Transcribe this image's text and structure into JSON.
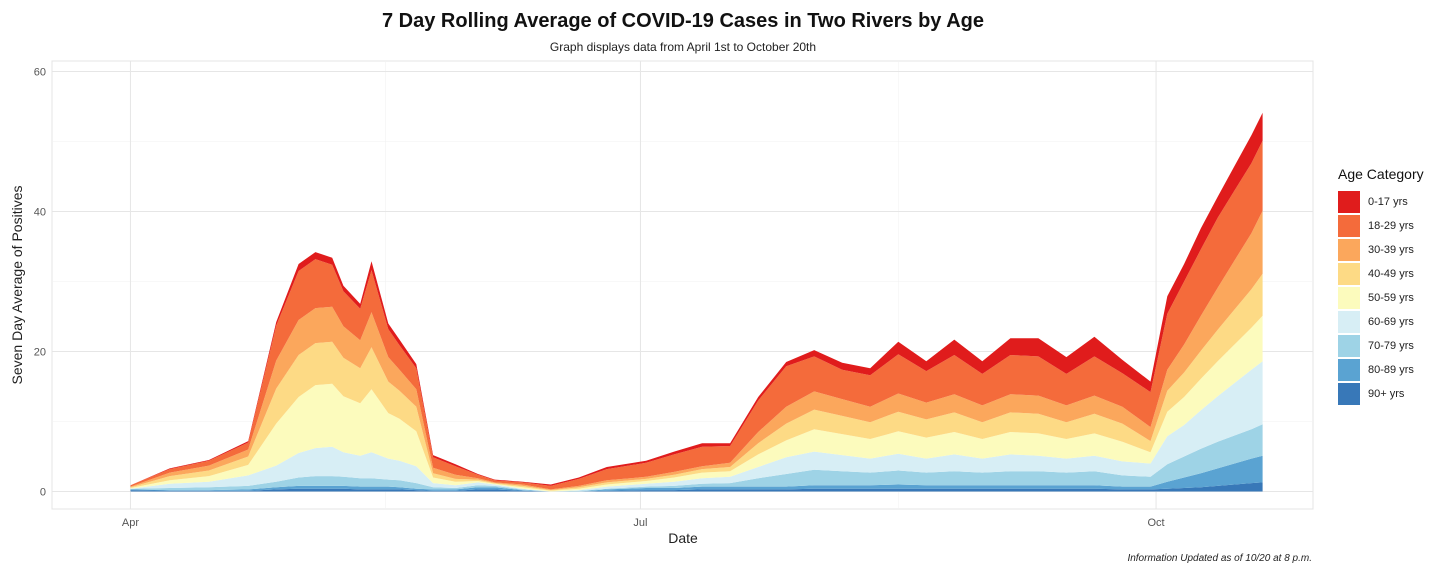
{
  "chart_data": {
    "type": "area",
    "stacked": true,
    "title": "7 Day Rolling Average of COVID-19 Cases in Two Rivers by Age",
    "subtitle": "Graph displays data from April 1st to October 20th",
    "xlabel": "Date",
    "ylabel": "Seven Day Average of Positives",
    "x_tick_labels": [
      "Apr",
      "Jul",
      "Oct"
    ],
    "x_tick_dates": [
      "04-01",
      "07-01",
      "10-01"
    ],
    "y_ticks": [
      0,
      20,
      40,
      60
    ],
    "ylim": [
      -2.5,
      61.5
    ],
    "xlim": [
      "03-18",
      "10-29"
    ],
    "grid": true,
    "legend_title": "Age Category",
    "legend_position": "right",
    "x_dates": [
      "04-01",
      "04-08",
      "04-15",
      "04-22",
      "04-27",
      "05-01",
      "05-04",
      "05-07",
      "05-09",
      "05-12",
      "05-14",
      "05-17",
      "05-19",
      "05-22",
      "05-25",
      "05-29",
      "06-02",
      "06-05",
      "06-10",
      "06-15",
      "06-20",
      "06-25",
      "07-02",
      "07-07",
      "07-12",
      "07-17",
      "07-22",
      "07-27",
      "08-01",
      "08-06",
      "08-11",
      "08-16",
      "08-21",
      "08-26",
      "08-31",
      "09-05",
      "09-10",
      "09-15",
      "09-20",
      "09-25",
      "09-30",
      "10-03",
      "10-06",
      "10-09",
      "10-12",
      "10-15",
      "10-18",
      "10-20"
    ],
    "series": [
      {
        "name": "90+ yrs",
        "color": "#3878b8",
        "values": [
          0.2,
          0.1,
          0.1,
          0.1,
          0.3,
          0.4,
          0.4,
          0.4,
          0.4,
          0.3,
          0.3,
          0.3,
          0.3,
          0.2,
          0.1,
          0.1,
          0.3,
          0.3,
          0.1,
          0,
          0,
          0.1,
          0.2,
          0.2,
          0.3,
          0.3,
          0.3,
          0.3,
          0.4,
          0.4,
          0.4,
          0.4,
          0.4,
          0.4,
          0.4,
          0.4,
          0.4,
          0.4,
          0.4,
          0.3,
          0.3,
          0.4,
          0.5,
          0.6,
          0.8,
          1,
          1.2,
          1.3
        ]
      },
      {
        "name": "80-89 yrs",
        "color": "#5aa3d2",
        "values": [
          0.1,
          0.1,
          0.1,
          0.2,
          0.3,
          0.4,
          0.4,
          0.4,
          0.4,
          0.4,
          0.4,
          0.4,
          0.3,
          0.2,
          0.2,
          0.2,
          0.3,
          0.3,
          0.1,
          0,
          0,
          0.2,
          0.3,
          0.3,
          0.4,
          0.4,
          0.4,
          0.4,
          0.5,
          0.5,
          0.5,
          0.6,
          0.5,
          0.5,
          0.5,
          0.5,
          0.5,
          0.5,
          0.5,
          0.4,
          0.4,
          1,
          1.5,
          2,
          2.5,
          3,
          3.5,
          3.8
        ]
      },
      {
        "name": "70-79 yrs",
        "color": "#9ed3e6",
        "values": [
          0.1,
          0.3,
          0.4,
          0.5,
          0.8,
          1.2,
          1.4,
          1.4,
          1.3,
          1.2,
          1.2,
          1,
          1,
          0.8,
          0.3,
          0.2,
          0.3,
          0.2,
          0.1,
          0,
          0.1,
          0.1,
          0.2,
          0.3,
          0.4,
          0.5,
          1.2,
          1.8,
          2.2,
          2,
          1.8,
          2,
          1.8,
          2,
          1.8,
          2,
          2,
          1.8,
          2,
          1.6,
          1.4,
          2.5,
          3,
          3.5,
          3.8,
          4,
          4.2,
          4.5
        ]
      },
      {
        "name": "60-69 yrs",
        "color": "#d7eef5",
        "values": [
          0,
          0.6,
          0.8,
          1.5,
          2.3,
          3.5,
          4,
          4.2,
          3.5,
          3.2,
          3.7,
          3,
          2.8,
          2.4,
          0.6,
          0.4,
          0.4,
          0.2,
          0.1,
          0,
          0.1,
          0.3,
          0.4,
          0.6,
          0.8,
          0.9,
          1.6,
          2.4,
          2.6,
          2.3,
          2,
          2.4,
          2,
          2.4,
          2,
          2.4,
          2.2,
          2,
          2.2,
          2,
          1.9,
          4,
          4.5,
          5.5,
          6.5,
          7.5,
          8.5,
          9
        ]
      },
      {
        "name": "50-59 yrs",
        "color": "#fcfbbd",
        "values": [
          0.1,
          0.5,
          0.8,
          1.5,
          6,
          8,
          9,
          9,
          8,
          7.5,
          9,
          6.5,
          6,
          5,
          0.8,
          0.5,
          0.2,
          0.1,
          0.2,
          0.1,
          0.2,
          0.3,
          0.4,
          0.6,
          0.8,
          0.8,
          1.8,
          2.4,
          3.2,
          3,
          2.8,
          3.2,
          3,
          3.2,
          2.8,
          3.2,
          3.2,
          2.8,
          3.2,
          2.8,
          1.6,
          3.5,
          4,
          4.5,
          5,
          5.5,
          6,
          6.5
        ]
      },
      {
        "name": "40-49 yrs",
        "color": "#fdda85",
        "values": [
          0.1,
          0.6,
          0.8,
          1.2,
          5,
          6,
          6,
          6,
          5.5,
          5,
          6,
          4.5,
          4,
          3.5,
          0.6,
          0.4,
          0.2,
          0.1,
          0.2,
          0.1,
          0.2,
          0.3,
          0.3,
          0.4,
          0.5,
          0.6,
          1.6,
          2.4,
          2.8,
          2.6,
          2.4,
          2.8,
          2.6,
          2.8,
          2.4,
          2.8,
          2.8,
          2.4,
          2.8,
          2.6,
          1.6,
          3,
          3.5,
          4,
          4.5,
          5,
          5.5,
          6
        ]
      },
      {
        "name": "30-39 yrs",
        "color": "#fba75c",
        "values": [
          0.1,
          0.5,
          0.7,
          1,
          4,
          5,
          5,
          5,
          4.5,
          4,
          5,
          3.5,
          3,
          2.5,
          0.8,
          0.6,
          0.2,
          0.1,
          0.2,
          0.1,
          0.2,
          0.3,
          0.3,
          0.4,
          0.4,
          0.6,
          1.6,
          2.4,
          2.6,
          2.4,
          2.2,
          2.6,
          2.4,
          2.6,
          2.4,
          2.6,
          2.6,
          2.4,
          2.6,
          2.4,
          2,
          3,
          4,
          5,
          6,
          7,
          8,
          9
        ]
      },
      {
        "name": "18-29 yrs",
        "color": "#f46b3b",
        "values": [
          0.2,
          0.5,
          0.7,
          1,
          5,
          7,
          7,
          6,
          5,
          4.5,
          6,
          4,
          3.5,
          3,
          1.5,
          1.2,
          0.5,
          0.3,
          0.3,
          0.5,
          1,
          1.6,
          2,
          2.5,
          2.8,
          2.4,
          4.5,
          5.8,
          5,
          4.2,
          4.5,
          5.6,
          4.5,
          5.6,
          4.5,
          5.6,
          5.6,
          4.5,
          5.6,
          4.8,
          5,
          8,
          9,
          9.5,
          10,
          10,
          10,
          10
        ]
      },
      {
        "name": "0-17 yrs",
        "color": "#e01c1c",
        "values": [
          0,
          0.1,
          0.1,
          0.2,
          0.5,
          1,
          1,
          1,
          0.8,
          0.7,
          1.3,
          0.8,
          0.8,
          0.6,
          0.3,
          0.3,
          0.1,
          0.1,
          0.1,
          0.2,
          0.2,
          0.3,
          0.3,
          0.4,
          0.5,
          0.4,
          0.5,
          0.6,
          0.9,
          1,
          1,
          1.8,
          1.4,
          2.2,
          1.8,
          2.4,
          2.6,
          2.4,
          2.8,
          1.9,
          1.5,
          2.5,
          2.5,
          3,
          3,
          3.5,
          4,
          4
        ]
      }
    ]
  },
  "footnote": "Information Updated as of 10/20 at 8 p.m."
}
